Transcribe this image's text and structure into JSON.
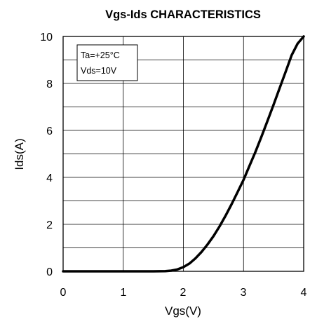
{
  "chart_data": {
    "type": "line",
    "title": "Vgs-Ids CHARACTERISTICS",
    "xlabel": "Vgs(V)",
    "ylabel": "Ids(A)",
    "xlim": [
      0,
      4
    ],
    "ylim": [
      0,
      10
    ],
    "x_ticks": [
      "0",
      "1",
      "2",
      "3",
      "4"
    ],
    "y_ticks": [
      "0",
      "2",
      "4",
      "6",
      "8",
      "10"
    ],
    "grid": true,
    "annotations": [
      "Ta=+25°C",
      "Vds=10V"
    ],
    "series": [
      {
        "x": [
          0,
          1.0,
          1.5,
          1.7,
          1.8,
          1.9,
          2.0,
          2.1,
          2.2,
          2.3,
          2.4,
          2.5,
          2.6,
          2.7,
          2.8,
          2.9,
          3.0,
          3.1,
          3.2,
          3.3,
          3.4,
          3.5,
          3.6,
          3.7,
          3.8,
          3.9,
          4.0
        ],
        "y": [
          0,
          0,
          0,
          0.01,
          0.03,
          0.08,
          0.18,
          0.33,
          0.55,
          0.82,
          1.14,
          1.5,
          1.91,
          2.36,
          2.85,
          3.37,
          3.9,
          4.5,
          5.1,
          5.75,
          6.42,
          7.1,
          7.8,
          8.5,
          9.2,
          9.7,
          10.0
        ]
      }
    ]
  }
}
